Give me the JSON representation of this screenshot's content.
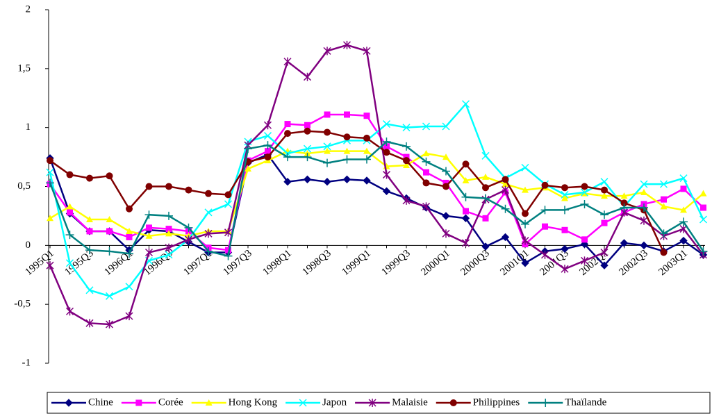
{
  "chart_data": {
    "type": "line",
    "categories": [
      "1995Q1",
      null,
      "1995Q3",
      null,
      "1996Q1",
      null,
      "1996Q3",
      null,
      "1997Q1",
      null,
      "1997Q3",
      null,
      "1998Q1",
      null,
      "1998Q3",
      null,
      "1999Q1",
      null,
      "1999Q3",
      null,
      "2000Q1",
      null,
      "2000Q3",
      null,
      "2001Q1",
      null,
      "2001Q3",
      null,
      "2002Q1",
      null,
      "2002Q3",
      null,
      "2003Q1",
      null
    ],
    "ylim": [
      -1,
      2
    ],
    "yticks": [
      {
        "value": -1,
        "label": "-1"
      },
      {
        "value": -0.5,
        "label": "-0,5"
      },
      0,
      {
        "value": 0.5,
        "label": "0,5"
      },
      1,
      {
        "value": 1.5,
        "label": "1,5"
      },
      2
    ],
    "legend": "bottom",
    "series": [
      {
        "name": "Chine",
        "color": "#000080",
        "marker": "diamond",
        "values": [
          0.74,
          0.27,
          0.12,
          0.12,
          -0.04,
          0.13,
          0.12,
          0.03,
          -0.06,
          -0.06,
          0.7,
          0.77,
          0.54,
          0.56,
          0.54,
          0.56,
          0.55,
          0.46,
          0.4,
          0.32,
          0.25,
          0.23,
          -0.01,
          0.07,
          -0.15,
          -0.05,
          -0.03,
          0.01,
          -0.17,
          0.02,
          0,
          -0.05,
          0.04,
          -0.08
        ]
      },
      {
        "name": "Corée",
        "color": "#ff00ff",
        "marker": "square",
        "values": [
          0.52,
          0.28,
          0.12,
          0.12,
          0.07,
          0.15,
          0.14,
          0.12,
          -0.02,
          -0.04,
          0.72,
          0.8,
          1.03,
          1.02,
          1.11,
          1.11,
          1.1,
          0.84,
          0.75,
          0.62,
          0.53,
          0.29,
          0.23,
          0.45,
          0.01,
          0.16,
          0.13,
          0.05,
          0.19,
          0.28,
          0.35,
          0.39,
          0.48,
          0.32
        ]
      },
      {
        "name": "Hong Kong",
        "color": "#ffff00",
        "marker": "triangle",
        "values": [
          0.23,
          0.33,
          0.22,
          0.22,
          0.12,
          0.08,
          0.1,
          0.08,
          0.12,
          0.12,
          0.65,
          0.72,
          0.8,
          0.78,
          0.8,
          0.8,
          0.8,
          0.67,
          0.68,
          0.78,
          0.75,
          0.55,
          0.58,
          0.52,
          0.47,
          0.49,
          0.4,
          0.44,
          0.42,
          0.42,
          0.45,
          0.33,
          0.3,
          0.44
        ]
      },
      {
        "name": "Japon",
        "color": "#00ffff",
        "marker": "x",
        "values": [
          0.62,
          -0.15,
          -0.38,
          -0.43,
          -0.35,
          -0.13,
          -0.08,
          0.05,
          0.28,
          0.35,
          0.88,
          0.93,
          0.78,
          0.82,
          0.84,
          0.89,
          0.89,
          1.03,
          1.0,
          1.01,
          1.01,
          1.2,
          0.76,
          0.57,
          0.66,
          0.52,
          0.43,
          0.45,
          0.54,
          0.33,
          0.52,
          0.52,
          0.57,
          0.22
        ]
      },
      {
        "name": "Malaisie",
        "color": "#800080",
        "marker": "star",
        "values": [
          -0.17,
          -0.56,
          -0.66,
          -0.67,
          -0.6,
          -0.06,
          -0.02,
          0.05,
          0.1,
          0.11,
          0.85,
          1.02,
          1.56,
          1.43,
          1.65,
          1.7,
          1.65,
          0.6,
          0.38,
          0.33,
          0.1,
          0.02,
          0.39,
          0.47,
          0.04,
          -0.08,
          -0.2,
          -0.13,
          -0.06,
          0.28,
          0.21,
          0.08,
          0.14,
          -0.08
        ]
      },
      {
        "name": "Philippines",
        "color": "#800000",
        "marker": "circle",
        "values": [
          0.72,
          0.6,
          0.57,
          0.59,
          0.31,
          0.5,
          0.5,
          0.47,
          0.44,
          0.43,
          0.71,
          0.75,
          0.95,
          0.97,
          0.96,
          0.92,
          0.91,
          0.79,
          0.72,
          0.53,
          0.5,
          0.69,
          0.49,
          0.56,
          0.27,
          0.51,
          0.49,
          0.5,
          0.47,
          0.36,
          0.3,
          -0.06,
          null,
          null
        ]
      },
      {
        "name": "Thaïlande",
        "color": "#008080",
        "marker": "plus",
        "values": [
          0.53,
          0.09,
          -0.04,
          -0.05,
          -0.07,
          0.26,
          0.25,
          0.15,
          -0.05,
          -0.09,
          0.82,
          0.85,
          0.75,
          0.75,
          0.7,
          0.73,
          0.73,
          0.88,
          0.84,
          0.71,
          0.63,
          0.41,
          0.4,
          0.31,
          0.18,
          0.3,
          0.3,
          0.35,
          0.26,
          0.32,
          0.32,
          0.1,
          0.2,
          -0.05
        ]
      }
    ]
  }
}
